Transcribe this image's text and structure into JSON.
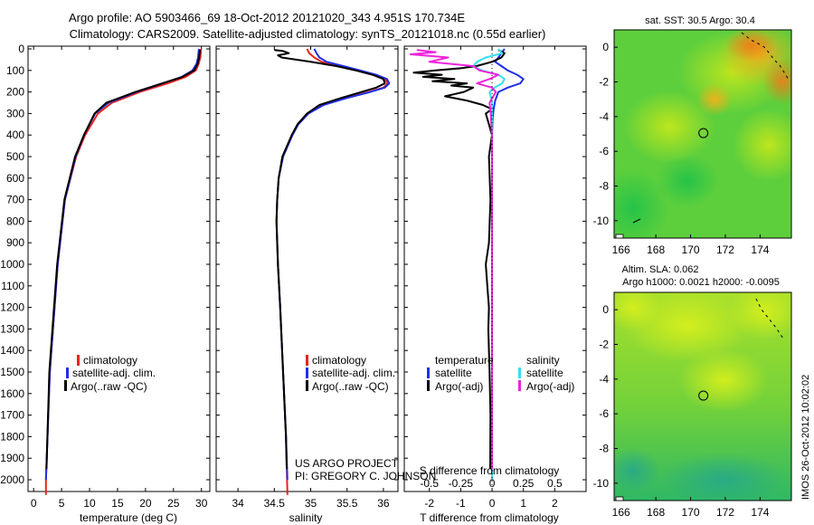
{
  "title": {
    "line1": "Argo profile: AO 5903466_69 18-Oct-2012 20121020_343 4.951S 170.734E",
    "line2": "Climatology: CARS2009. Satellite-adjusted climatology: synTS_20121018.nc (0.55d earlier)"
  },
  "colors": {
    "climatology": "#e8231f",
    "satellite": "#1f2fe8",
    "argo": "#000000",
    "salt_sat": "#33e0f0",
    "salt_argo": "#ee22dd"
  },
  "credits": {
    "project": "US ARGO PROJECT",
    "pi": "PI: GREGORY C. JOHNSON",
    "stamp": "IMOS 26-Oct-2012 10:02:02"
  },
  "chart_data": [
    {
      "id": "temperature",
      "type": "line",
      "xlabel": "temperature (deg C)",
      "ylabel": "",
      "xlim": [
        -1,
        31.5
      ],
      "ylim": [
        2080,
        0
      ],
      "xticks": [
        0,
        5,
        10,
        15,
        20,
        25,
        30
      ],
      "yticks": [
        0,
        100,
        200,
        300,
        400,
        500,
        600,
        700,
        800,
        900,
        1000,
        1100,
        1200,
        1300,
        1400,
        1500,
        1600,
        1700,
        1800,
        1900,
        2000
      ],
      "legend": [
        "climatology",
        "satellite-adj. clim.",
        "Argo(..raw -QC)"
      ],
      "series": [
        {
          "name": "climatology",
          "color": "#e8231f",
          "depth": [
            0,
            10,
            40,
            70,
            100,
            130,
            160,
            200,
            250,
            300,
            400,
            500,
            700,
            1000,
            1500,
            2000,
            2070
          ],
          "values": [
            29.9,
            29.9,
            29.8,
            29.5,
            29.0,
            27.2,
            24.0,
            19.0,
            14.0,
            11.5,
            9.2,
            7.6,
            5.6,
            4.3,
            2.9,
            2.2,
            2.2
          ]
        },
        {
          "name": "satellite-adj. clim.",
          "color": "#1f2fe8",
          "depth": [
            0,
            10,
            40,
            70,
            100,
            130,
            160,
            200,
            250,
            300,
            400,
            500,
            700,
            1000,
            1500,
            2000
          ],
          "values": [
            29.6,
            29.5,
            29.4,
            29.1,
            28.4,
            26.5,
            23.1,
            18.4,
            13.4,
            11.0,
            9.0,
            7.5,
            5.6,
            4.3,
            2.9,
            2.2
          ]
        },
        {
          "name": "Argo(..raw -QC)",
          "color": "#000000",
          "depth": [
            5,
            10,
            40,
            70,
            100,
            130,
            160,
            200,
            250,
            300,
            400,
            500,
            700,
            1000,
            1500,
            1950
          ],
          "values": [
            29.8,
            29.7,
            29.6,
            29.3,
            28.7,
            26.6,
            23.0,
            18.2,
            13.0,
            10.9,
            9.0,
            7.4,
            5.5,
            4.2,
            2.8,
            2.3
          ]
        }
      ]
    },
    {
      "id": "salinity",
      "type": "line",
      "xlabel": "salinity",
      "ylabel": "",
      "xlim": [
        33.7,
        36.2
      ],
      "ylim": [
        2080,
        0
      ],
      "xticks": [
        34,
        34.5,
        35,
        35.5,
        36
      ],
      "xticklabels": [
        "34",
        "34.5",
        "35",
        "35.5",
        "36"
      ],
      "legend": [
        "climatology",
        "satellite-adj. clim.",
        "Argo(..raw -QC)"
      ],
      "series": [
        {
          "name": "climatology",
          "color": "#e8231f",
          "depth": [
            0,
            20,
            40,
            60,
            80,
            100,
            120,
            140,
            160,
            180,
            200,
            230,
            260,
            300,
            350,
            400,
            500,
            600,
            700,
            800,
            900,
            1000,
            1200,
            1500,
            1800,
            2070
          ],
          "values": [
            34.95,
            34.98,
            35.05,
            35.15,
            35.4,
            35.65,
            35.88,
            36.02,
            36.06,
            36.0,
            35.8,
            35.45,
            35.15,
            34.95,
            34.82,
            34.74,
            34.62,
            34.56,
            34.54,
            34.53,
            34.54,
            34.55,
            34.58,
            34.62,
            34.66,
            34.68
          ]
        },
        {
          "name": "satellite-adj. clim.",
          "color": "#1f2fe8",
          "depth": [
            0,
            20,
            40,
            60,
            80,
            100,
            120,
            140,
            160,
            180,
            200,
            230,
            260,
            300,
            350,
            400,
            500,
            600,
            700,
            800,
            900,
            1000,
            1200,
            1500,
            1800,
            2000
          ],
          "values": [
            35.05,
            35.08,
            35.12,
            35.22,
            35.45,
            35.68,
            35.9,
            36.05,
            36.08,
            36.02,
            35.82,
            35.48,
            35.18,
            34.97,
            34.83,
            34.75,
            34.62,
            34.56,
            34.54,
            34.53,
            34.54,
            34.55,
            34.58,
            34.62,
            34.66,
            34.68
          ]
        },
        {
          "name": "Argo(..raw -QC)",
          "color": "#000000",
          "depth": [
            5,
            10,
            20,
            30,
            40,
            50,
            60,
            80,
            100,
            120,
            140,
            160,
            180,
            200,
            230,
            260,
            300,
            350,
            400,
            500,
            600,
            700,
            800,
            900,
            1000,
            1200,
            1500,
            1800,
            1950
          ],
          "values": [
            34.5,
            34.62,
            34.7,
            34.55,
            34.6,
            34.8,
            35.0,
            35.35,
            35.62,
            35.85,
            36.0,
            36.02,
            35.9,
            35.7,
            35.4,
            35.12,
            34.95,
            34.82,
            34.74,
            34.61,
            34.56,
            34.54,
            34.53,
            34.54,
            34.55,
            34.58,
            34.62,
            34.66,
            34.67
          ]
        }
      ]
    },
    {
      "id": "differences",
      "type": "line",
      "xlabel": "T difference from climatology",
      "xlabel2": "S difference from climatology",
      "xlim": [
        -2.8,
        3.0
      ],
      "xticks": [
        -2,
        -1,
        0,
        1,
        2
      ],
      "xlim_top": [
        -0.7,
        0.75
      ],
      "xticks_top": [
        -0.5,
        -0.25,
        0,
        0.25,
        0.5
      ],
      "xticklabels_top": [
        "-0.5",
        "-0.25",
        "0",
        "0.25",
        "0.5"
      ],
      "ylim": [
        2080,
        0
      ],
      "legend_titles": [
        "temperature",
        "salinity"
      ],
      "legend": [
        "satellite",
        "Argo(-adj)",
        "satellite",
        "Argo(-adj)"
      ],
      "series": [
        {
          "name": "T satellite",
          "color": "#1f2fe8",
          "axis": "T",
          "depth": [
            0,
            20,
            40,
            60,
            80,
            100,
            120,
            140,
            160,
            180,
            200,
            240,
            280,
            320,
            400,
            500,
            700,
            1000,
            1500,
            2000
          ],
          "values": [
            0.4,
            0.3,
            0.2,
            0.1,
            0.3,
            0.5,
            0.8,
            1.0,
            0.9,
            0.5,
            0.2,
            0.1,
            0.05,
            0.02,
            0.0,
            0.0,
            0.0,
            0.0,
            0.0,
            0.0
          ]
        },
        {
          "name": "T Argo(-adj)",
          "color": "#000000",
          "axis": "T",
          "depth": [
            5,
            20,
            40,
            60,
            80,
            90,
            100,
            110,
            120,
            130,
            140,
            150,
            160,
            170,
            180,
            200,
            220,
            240,
            260,
            280,
            300,
            350,
            400,
            500,
            700,
            900,
            1000,
            1100,
            1200,
            1300,
            1500,
            1700,
            1950
          ],
          "values": [
            0.2,
            0.4,
            0.3,
            0.0,
            -0.5,
            -1.0,
            -1.8,
            -2.5,
            -1.6,
            -2.2,
            -1.2,
            -1.9,
            -0.8,
            -1.3,
            -0.6,
            -0.9,
            -1.5,
            -0.8,
            -0.3,
            0.0,
            -0.2,
            -0.1,
            0.0,
            -0.1,
            -0.05,
            -0.1,
            -0.2,
            -0.15,
            -0.1,
            -0.12,
            -0.08,
            -0.05,
            -0.06
          ]
        },
        {
          "name": "S satellite",
          "color": "#33e0f0",
          "axis": "S",
          "depth": [
            0,
            20,
            40,
            60,
            80,
            100,
            120,
            140,
            160,
            180,
            200,
            250,
            300,
            400,
            500,
            700,
            1000,
            1500,
            2000
          ],
          "values": [
            0.05,
            0.08,
            -0.05,
            -0.12,
            -0.15,
            -0.08,
            0.05,
            0.1,
            0.08,
            0.02,
            -0.02,
            0.0,
            0.0,
            0.0,
            0.0,
            0.0,
            0.0,
            0.0,
            0.0
          ]
        },
        {
          "name": "S Argo(-adj)",
          "color": "#ee22dd",
          "axis": "S",
          "depth": [
            5,
            15,
            25,
            40,
            60,
            80,
            100,
            120,
            140,
            160,
            180,
            200,
            250,
            300,
            400,
            500,
            700,
            1000,
            1500,
            1950
          ],
          "values": [
            -0.6,
            -0.45,
            -0.65,
            -0.35,
            -0.5,
            -0.15,
            -0.1,
            0.05,
            -0.02,
            -0.12,
            0.0,
            0.03,
            -0.02,
            -0.01,
            0.0,
            0.0,
            0.0,
            0.0,
            0.0,
            0.0
          ]
        }
      ]
    },
    {
      "id": "sst_map",
      "type": "heatmap",
      "title": "sat. SST: 30.5 Argo: 30.4",
      "xlim": [
        165.6,
        175.8
      ],
      "ylim": [
        -11,
        1
      ],
      "xticks": [
        166,
        168,
        170,
        172,
        174
      ],
      "yticks": [
        0,
        -2,
        -4,
        -6,
        -8,
        -10
      ],
      "marker": {
        "lon": 170.734,
        "lat": -4.951
      }
    },
    {
      "id": "sla_map",
      "type": "heatmap",
      "title": "Altim. SLA: 0.062",
      "subtitle": "Argo h1000: 0.0021 h2000: -0.0095",
      "xlim": [
        165.6,
        175.8
      ],
      "ylim": [
        -11,
        1
      ],
      "xticks": [
        166,
        168,
        170,
        172,
        174
      ],
      "yticks": [
        0,
        -2,
        -4,
        -6,
        -8,
        -10
      ],
      "marker": {
        "lon": 170.734,
        "lat": -4.951
      }
    }
  ]
}
